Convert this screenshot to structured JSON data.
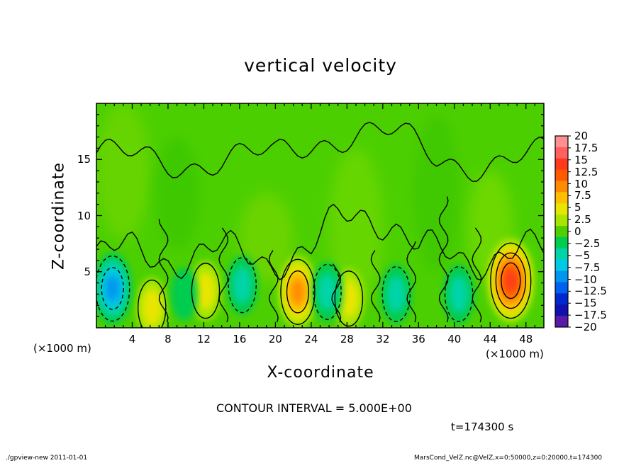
{
  "chart_data": {
    "type": "heatmap",
    "title": "vertical velocity",
    "xlabel": "X-coordinate",
    "ylabel": "Z-coordinate",
    "x_unit_left": "(×1000 m)",
    "x_unit_right": "(×1000 m)",
    "x_ticks": [
      "4",
      "8",
      "12",
      "16",
      "20",
      "24",
      "28",
      "32",
      "36",
      "40",
      "44",
      "48"
    ],
    "x_tick_values": [
      4,
      8,
      12,
      16,
      20,
      24,
      28,
      32,
      36,
      40,
      44,
      48
    ],
    "y_ticks": [
      "5",
      "10",
      "15"
    ],
    "y_tick_values": [
      5,
      10,
      15
    ],
    "xlim": [
      0,
      50
    ],
    "ylim": [
      0,
      20
    ],
    "colorbar": {
      "labels": [
        "20",
        "17.5",
        "15",
        "12.5",
        "10",
        "7.5",
        "5",
        "2.5",
        "0",
        "−2.5",
        "−5",
        "−7.5",
        "−10",
        "−12.5",
        "−15",
        "−17.5",
        "−20"
      ],
      "colors": [
        "#ff9090",
        "#ff6060",
        "#ff3a1a",
        "#ff5a00",
        "#ff8c00",
        "#ffbe00",
        "#e8e600",
        "#a8e600",
        "#50d000",
        "#00cc50",
        "#00d4a8",
        "#00c8e6",
        "#0096f0",
        "#0060f0",
        "#0028d0",
        "#1010b0",
        "#5a1aa8"
      ]
    },
    "features": [
      {
        "x": 22.5,
        "z": 3.2,
        "value": 10
      },
      {
        "x": 28.2,
        "z": 2.6,
        "value": 5
      },
      {
        "x": 6.2,
        "z": 1.8,
        "value": 5
      },
      {
        "x": 46.3,
        "z": 4.2,
        "value": 15
      },
      {
        "x": 1.8,
        "z": 3.5,
        "value": -10
      },
      {
        "x": 16.3,
        "z": 3.8,
        "value": -5
      },
      {
        "x": 33.5,
        "z": 3.0,
        "value": -5
      },
      {
        "x": 25.8,
        "z": 3.2,
        "value": -5
      },
      {
        "x": 40.5,
        "z": 3.0,
        "value": -5
      },
      {
        "x": 12.2,
        "z": 3.3,
        "value": 5
      },
      {
        "x": 9.8,
        "z": 3.0,
        "value": -2.5
      }
    ]
  },
  "annotations": {
    "contour_interval": "CONTOUR INTERVAL = 5.000E+00",
    "time": "t=174300 s",
    "footer_left": "./gpview-new   2011-01-01",
    "footer_right": "MarsCond_VelZ.nc@VelZ,x=0:50000,z=0:20000,t=174300"
  }
}
